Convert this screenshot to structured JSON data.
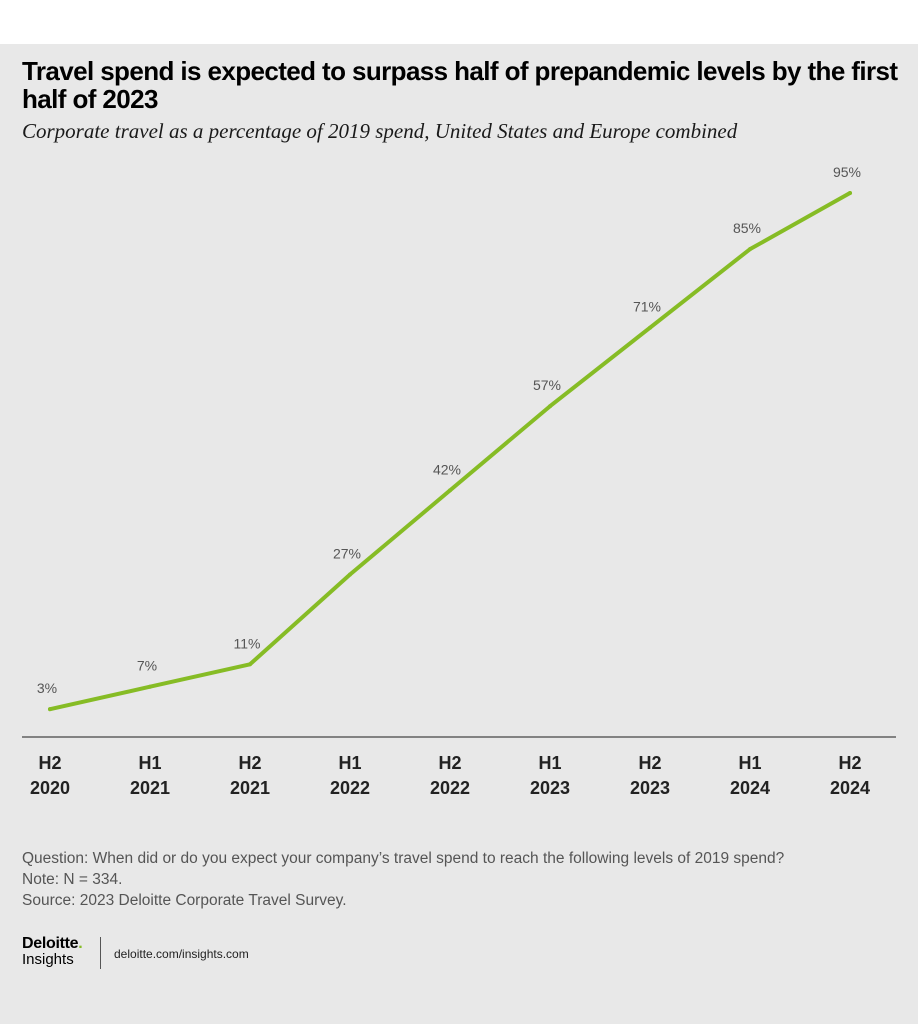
{
  "header": {
    "title": "Travel spend is expected to surpass half of prepandemic levels by the first half of 2023",
    "subtitle": "Corporate travel as a percentage of 2019 spend, United States and Europe combined"
  },
  "chart_data": {
    "type": "line",
    "title": "Travel spend is expected to surpass half of prepandemic levels by the first half of 2023",
    "subtitle": "Corporate travel as a percentage of 2019 spend, United States and Europe combined",
    "xlabel": "",
    "ylabel": "",
    "ylim": [
      0,
      100
    ],
    "grid": false,
    "categories": [
      [
        "H2",
        "2020"
      ],
      [
        "H1",
        "2021"
      ],
      [
        "H2",
        "2021"
      ],
      [
        "H1",
        "2022"
      ],
      [
        "H2",
        "2022"
      ],
      [
        "H1",
        "2023"
      ],
      [
        "H2",
        "2023"
      ],
      [
        "H1",
        "2024"
      ],
      [
        "H2",
        "2024"
      ]
    ],
    "series": [
      {
        "name": "Corporate travel spend (% of 2019)",
        "values": [
          3,
          7,
          11,
          27,
          42,
          57,
          71,
          85,
          95
        ],
        "labels": [
          "3%",
          "7%",
          "11%",
          "27%",
          "42%",
          "57%",
          "71%",
          "85%",
          "95%"
        ],
        "color": "#86bc25"
      }
    ]
  },
  "notes": {
    "question": "Question: When did or do you expect your company’s travel spend to reach the following levels of 2019 spend?",
    "note": "Note: N = 334.",
    "source": "Source: 2023 Deloitte Corporate Travel Survey."
  },
  "footer": {
    "brand": "Deloitte",
    "brand_dot": ".",
    "brand_sub": "Insights",
    "url": "deloitte.com/insights.com"
  },
  "colors": {
    "line": "#86bc25",
    "background": "#e8e8e8",
    "axis": "#444444",
    "label": "#555555"
  }
}
